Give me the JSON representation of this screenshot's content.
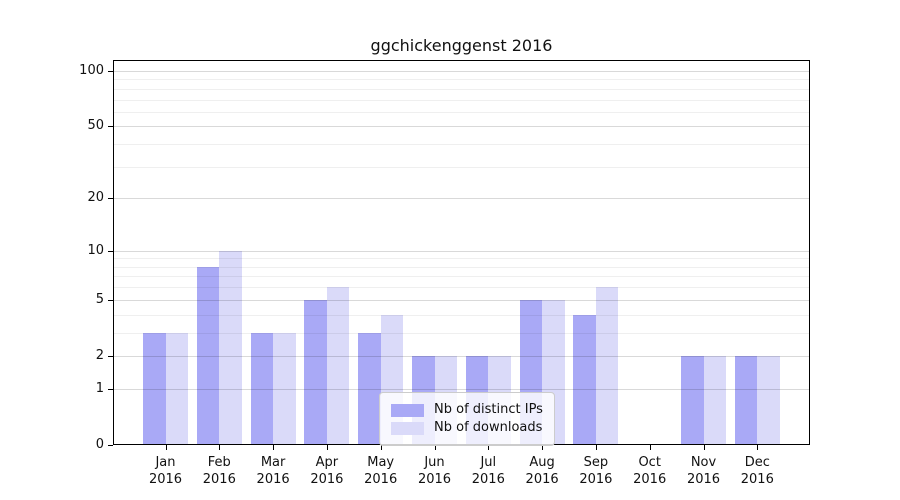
{
  "title": "ggchickenggenst 2016",
  "chart_data": {
    "type": "bar",
    "title": "ggchickenggenst 2016",
    "categories": [
      "Jan 2016",
      "Feb 2016",
      "Mar 2016",
      "Apr 2016",
      "May 2016",
      "Jun 2016",
      "Jul 2016",
      "Aug 2016",
      "Sep 2016",
      "Oct 2016",
      "Nov 2016",
      "Dec 2016"
    ],
    "series": [
      {
        "name": "Nb of distinct IPs",
        "color": "#a9a9f6",
        "values": [
          3,
          8,
          3,
          5,
          3,
          2,
          2,
          5,
          4,
          0,
          2,
          2
        ]
      },
      {
        "name": "Nb of downloads",
        "color": "#dadaf9",
        "values": [
          3,
          10,
          3,
          6,
          4,
          2,
          2,
          5,
          6,
          0,
          2,
          2
        ]
      }
    ],
    "yscale": "log1p",
    "ylim": [
      0,
      115
    ],
    "yticks_major": [
      0,
      1,
      2,
      5,
      10,
      20,
      50,
      100
    ],
    "yticks_minor": [
      3,
      4,
      6,
      7,
      8,
      9,
      30,
      40,
      60,
      70,
      80,
      90
    ],
    "grid": "horizontal",
    "legend_position": "bottom-center-inside"
  },
  "colors": {
    "grid_major": "#d9d9d9",
    "grid_minor": "#efefef",
    "spine": "#000000",
    "background": "#ffffff"
  }
}
